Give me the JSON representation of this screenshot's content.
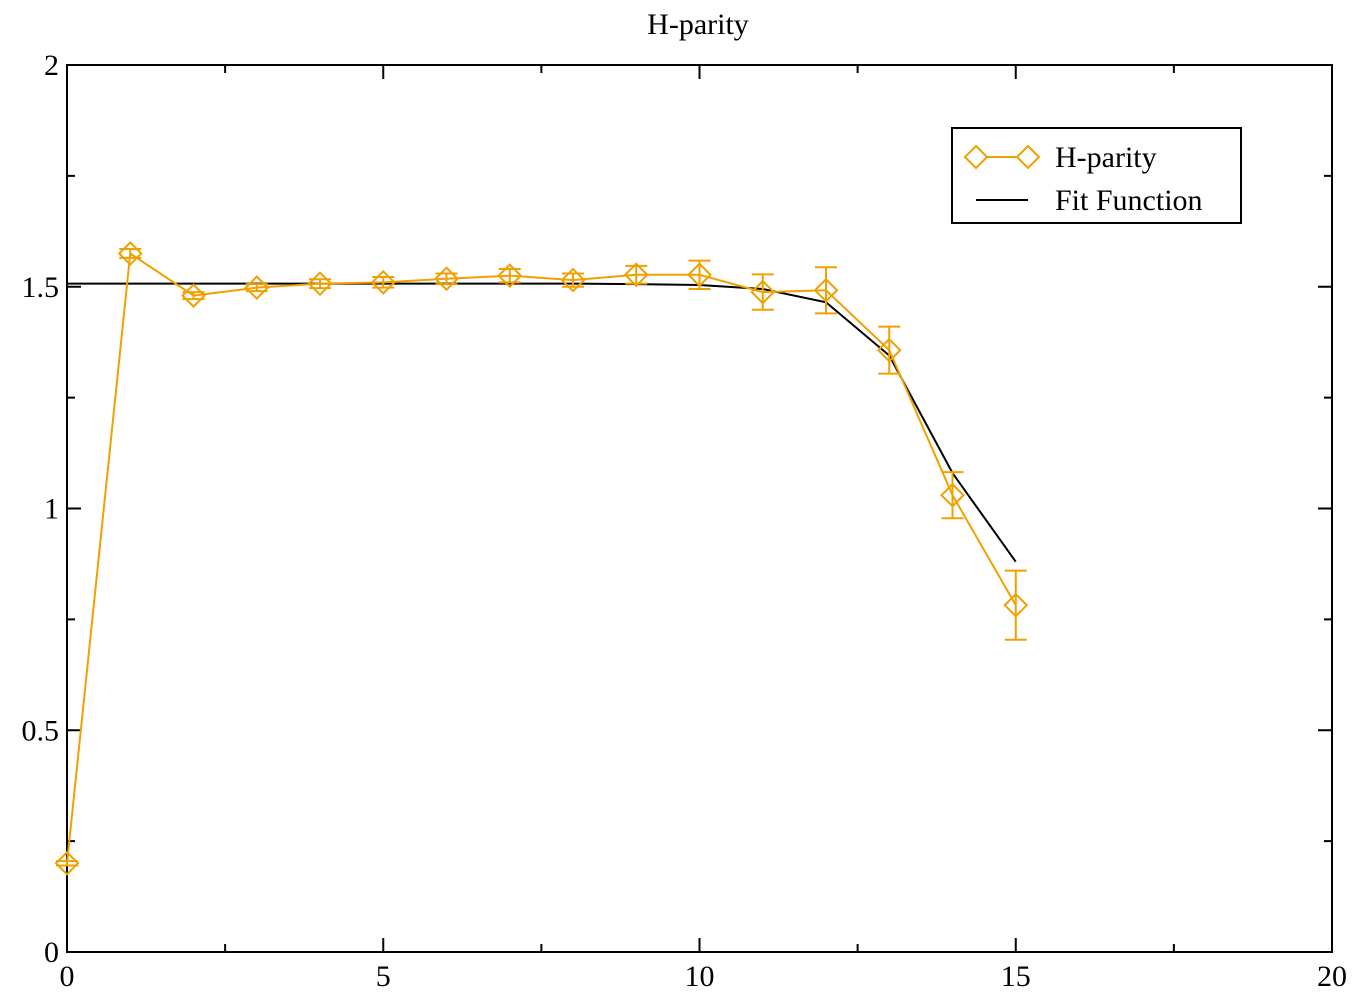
{
  "chart_data": {
    "type": "line",
    "title": "H-parity",
    "xlabel": "",
    "ylabel": "",
    "xlim": [
      0,
      20
    ],
    "ylim": [
      0,
      2
    ],
    "x_major_ticks": [
      0,
      5,
      10,
      15,
      20
    ],
    "x_tick_labels": [
      "0",
      "5",
      "10",
      "15",
      "20"
    ],
    "x_minor_ticks": [
      2.5,
      7.5,
      12.5,
      17.5
    ],
    "y_major_ticks": [
      0,
      0.5,
      1,
      1.5,
      2
    ],
    "y_tick_labels": [
      "0",
      "0.5",
      "1",
      "1.5",
      "2"
    ],
    "y_minor_ticks": [
      0.25,
      0.75,
      1.25,
      1.75
    ],
    "grid": false,
    "legend_position": "top-right",
    "series": [
      {
        "name": "H-parity",
        "color": "#f0a000",
        "marker": "diamond",
        "x": [
          0,
          1,
          2,
          3,
          4,
          5,
          6,
          7,
          8,
          9,
          10,
          11,
          12,
          13,
          14,
          15
        ],
        "y": [
          0.2,
          1.575,
          1.48,
          1.498,
          1.507,
          1.51,
          1.518,
          1.525,
          1.515,
          1.527,
          1.527,
          1.488,
          1.492,
          1.357,
          1.03,
          0.782
        ],
        "error": [
          0.005,
          0.01,
          0.008,
          0.008,
          0.01,
          0.012,
          0.012,
          0.015,
          0.015,
          0.02,
          0.032,
          0.04,
          0.052,
          0.053,
          0.052,
          0.078
        ]
      },
      {
        "name": "Fit Function",
        "color": "#000000",
        "marker": "none",
        "x": [
          0,
          1,
          2,
          3,
          4,
          5,
          6,
          7,
          8,
          9,
          10,
          11,
          12,
          13,
          14,
          15
        ],
        "y": [
          1.507,
          1.507,
          1.507,
          1.507,
          1.507,
          1.507,
          1.507,
          1.507,
          1.507,
          1.506,
          1.504,
          1.495,
          1.465,
          1.345,
          1.08,
          0.88
        ]
      }
    ]
  }
}
